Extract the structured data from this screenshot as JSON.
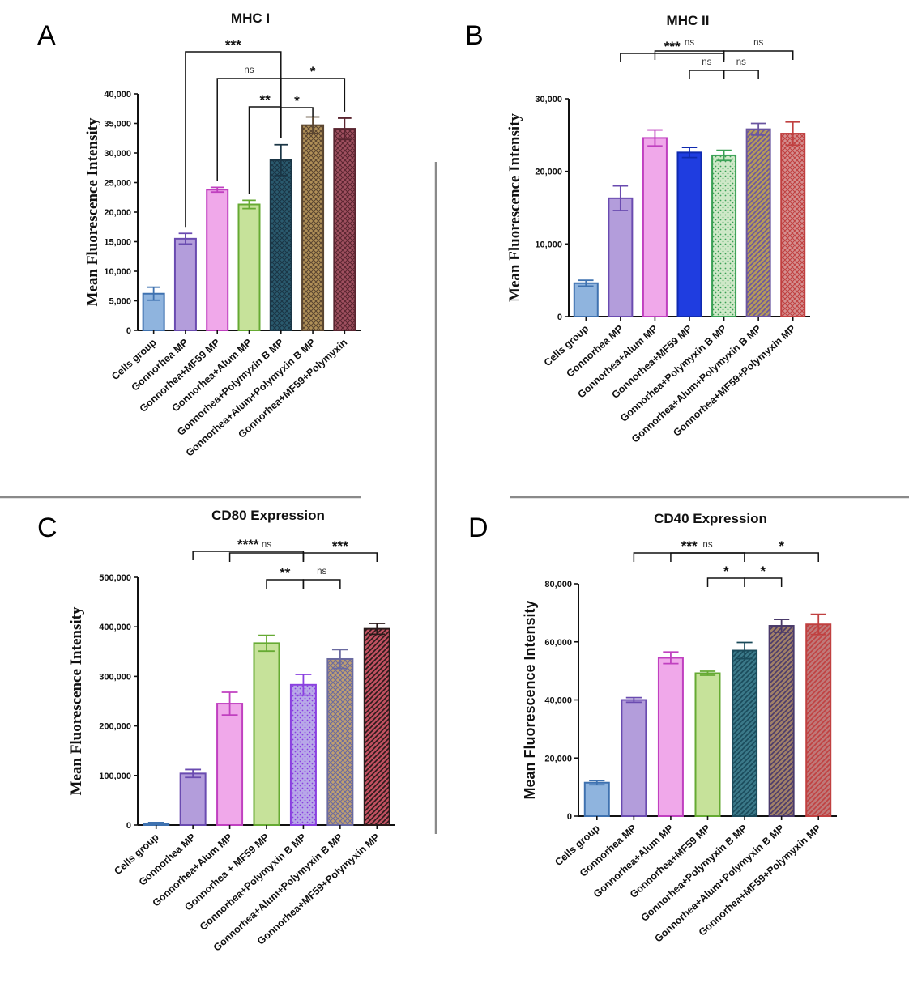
{
  "panel_letters": [
    "A",
    "B",
    "C",
    "D"
  ],
  "chart_data": [
    {
      "panel": "A",
      "type": "bar",
      "title": "MHC I",
      "title_style": "bold-sans",
      "ylabel": "Mean Fluorescence Intensity",
      "ylabel_style": "serif",
      "xlabel": "",
      "ylim": [
        0,
        40000
      ],
      "yticks": [
        0,
        5000,
        10000,
        15000,
        20000,
        25000,
        30000,
        35000,
        40000
      ],
      "ytick_labels": [
        "0",
        "5,000",
        "10,000",
        "15,000",
        "20,000",
        "25,000",
        "30,000",
        "35,000",
        "40,000"
      ],
      "categories": [
        "Cells group",
        "Gonnorhea MP",
        "Gonnorhea+MF59 MP",
        "Gonnorhea+Alum MP",
        "Gonnorhea+Polymyxin B MP",
        "Gonnorhea+Alum+Polymyxin B MP",
        "Gonnorhea+MF59+Polymyxin"
      ],
      "values": [
        6200,
        15500,
        23800,
        21300,
        28800,
        34700,
        34100
      ],
      "errors": [
        1100,
        900,
        400,
        700,
        2600,
        1400,
        1800
      ],
      "colors": [
        "#8fb4de",
        "#b39ddb",
        "#f0a8ea",
        "#c6e29a",
        "#2a5a6e",
        "#b09058",
        "#a05060"
      ],
      "edge_colors": [
        "#3f72b0",
        "#6a4bb0",
        "#c040c0",
        "#66aa33",
        "#1a3545",
        "#5a4530",
        "#5a2530"
      ],
      "patterns": [
        "solid",
        "solid",
        "solid",
        "solid",
        "crosshatch",
        "crosshatch",
        "crosshatch"
      ],
      "significance": [
        {
          "from": 1,
          "to": 4,
          "label": "***",
          "level": 4
        },
        {
          "from": 2,
          "to": 4,
          "label": "ns",
          "level": 3
        },
        {
          "from": 4,
          "to": 6,
          "label": "*",
          "level": 3
        },
        {
          "from": 3,
          "to": 4,
          "label": "**",
          "level": 2
        },
        {
          "from": 4,
          "to": 5,
          "label": "*",
          "level": 1
        }
      ]
    },
    {
      "panel": "B",
      "type": "bar",
      "title": "MHC II",
      "title_style": "bold-sans",
      "ylabel": "Mean Fluorescence Intensity",
      "ylabel_style": "serif",
      "xlabel": "",
      "ylim": [
        0,
        30000
      ],
      "yticks": [
        0,
        10000,
        20000,
        30000
      ],
      "ytick_labels": [
        "0",
        "10,000",
        "20,000",
        "30,000"
      ],
      "categories": [
        "Cells group",
        "Gonnorhea MP",
        "Gonnorhea+Alum MP",
        "Gonnorhea+MF59 MP",
        "Gonnorhea+Polymyxin B MP",
        "Gonnorhea+Alum+Polymyxin B MP",
        "Gonnorhea+MF59+Polymyxin MP"
      ],
      "values": [
        4600,
        16300,
        24600,
        22600,
        22200,
        25800,
        25200
      ],
      "errors": [
        400,
        1700,
        1100,
        700,
        700,
        800,
        1600
      ],
      "colors": [
        "#8fb4de",
        "#b39ddb",
        "#f0a8ea",
        "#1f3de0",
        "#cfe8c8",
        "#b59a5a",
        "#d49090"
      ],
      "edge_colors": [
        "#3f72b0",
        "#6a4bb0",
        "#c040c0",
        "#0f2ab0",
        "#3aa055",
        "#6a55a0",
        "#c04040"
      ],
      "patterns": [
        "solid",
        "solid",
        "solid",
        "solid",
        "dots",
        "diagonal",
        "crosshatch"
      ],
      "significance": [
        {
          "from": 1,
          "to": 4,
          "label": "***",
          "level": 4
        },
        {
          "from": 2,
          "to": 4,
          "label": "ns",
          "level": 3
        },
        {
          "from": 4,
          "to": 6,
          "label": "ns",
          "level": 3
        },
        {
          "from": 3,
          "to": 4,
          "label": "ns",
          "level": 2
        },
        {
          "from": 4,
          "to": 5,
          "label": "ns",
          "level": 2
        }
      ]
    },
    {
      "panel": "C",
      "type": "bar",
      "title": "CD80 Expression",
      "title_style": "bold-sans",
      "ylabel": "Mean Fluorescence Intensity",
      "ylabel_style": "serif",
      "xlabel": "",
      "ylim": [
        0,
        500000
      ],
      "yticks": [
        0,
        100000,
        200000,
        300000,
        400000,
        500000
      ],
      "ytick_labels": [
        "0",
        "100,000",
        "200,000",
        "300,000",
        "400,000",
        "500,000"
      ],
      "categories": [
        "Cells group",
        "Gonnorhea MP",
        "Gonnorhea+Alum MP",
        "Gonnorhea  + MF59 MP",
        "Gonnorhea+Polymyxin B MP",
        "Gonnorhea+Alum+Polymyxin B MP",
        "Gonnorhea+MF59+Polymyxin MP"
      ],
      "values": [
        3000,
        104000,
        245000,
        367000,
        283000,
        335000,
        396000
      ],
      "errors": [
        2000,
        8000,
        23000,
        16000,
        21000,
        19000,
        11000
      ],
      "colors": [
        "#8fb4de",
        "#b39ddb",
        "#f0a8ea",
        "#c6e29a",
        "#b8a8e8",
        "#c0a070",
        "#c05060"
      ],
      "edge_colors": [
        "#3f72b0",
        "#6a4bb0",
        "#c040c0",
        "#66aa33",
        "#8a40e0",
        "#6a6aa0",
        "#2a1a1a"
      ],
      "patterns": [
        "solid",
        "solid",
        "solid",
        "solid",
        "dots",
        "crosshatch",
        "diagonal"
      ],
      "significance": [
        {
          "from": 1,
          "to": 4,
          "label": "****",
          "level": 4
        },
        {
          "from": 2,
          "to": 4,
          "label": "ns",
          "level": 3
        },
        {
          "from": 4,
          "to": 6,
          "label": "***",
          "level": 3
        },
        {
          "from": 3,
          "to": 4,
          "label": "**",
          "level": 2
        },
        {
          "from": 4,
          "to": 5,
          "label": "ns",
          "level": 2
        }
      ]
    },
    {
      "panel": "D",
      "type": "bar",
      "title": "CD40 Expression",
      "title_style": "bold-sans",
      "ylabel": "Mean Fluorescence Intensity",
      "ylabel_style": "sans",
      "xlabel": "",
      "ylim": [
        0,
        80000
      ],
      "yticks": [
        0,
        20000,
        40000,
        60000,
        80000
      ],
      "ytick_labels": [
        "0",
        "20,000",
        "40,000",
        "60,000",
        "80,000"
      ],
      "categories": [
        "Cells group",
        "Gonnorhea MP",
        "Gonnorhea+Alum MP",
        "Gonnorhea+MF59 MP",
        "Gonnorhea+Polymyxin B MP",
        "Gonnorhea+Alum+Polymyxin B MP",
        "Gonnorhea+MF59+Polymyxin MP"
      ],
      "values": [
        11500,
        40000,
        54500,
        49200,
        57000,
        65500,
        66000
      ],
      "errors": [
        700,
        800,
        2000,
        700,
        2800,
        2200,
        3500
      ],
      "colors": [
        "#8fb4de",
        "#b39ddb",
        "#f0a8ea",
        "#c6e29a",
        "#3a7888",
        "#a08068",
        "#c07878"
      ],
      "edge_colors": [
        "#3f72b0",
        "#6a4bb0",
        "#c040c0",
        "#66aa33",
        "#1a4a5a",
        "#4a3a6a",
        "#c04040"
      ],
      "patterns": [
        "solid",
        "solid",
        "solid",
        "solid",
        "diagonal",
        "diagonal",
        "diagonal"
      ],
      "significance": [
        {
          "from": 1,
          "to": 4,
          "label": "***",
          "level": 4
        },
        {
          "from": 2,
          "to": 4,
          "label": "ns",
          "level": 3
        },
        {
          "from": 4,
          "to": 6,
          "label": "*",
          "level": 3
        },
        {
          "from": 3,
          "to": 4,
          "label": "*",
          "level": 2
        },
        {
          "from": 4,
          "to": 5,
          "label": "*",
          "level": 2
        }
      ]
    }
  ]
}
